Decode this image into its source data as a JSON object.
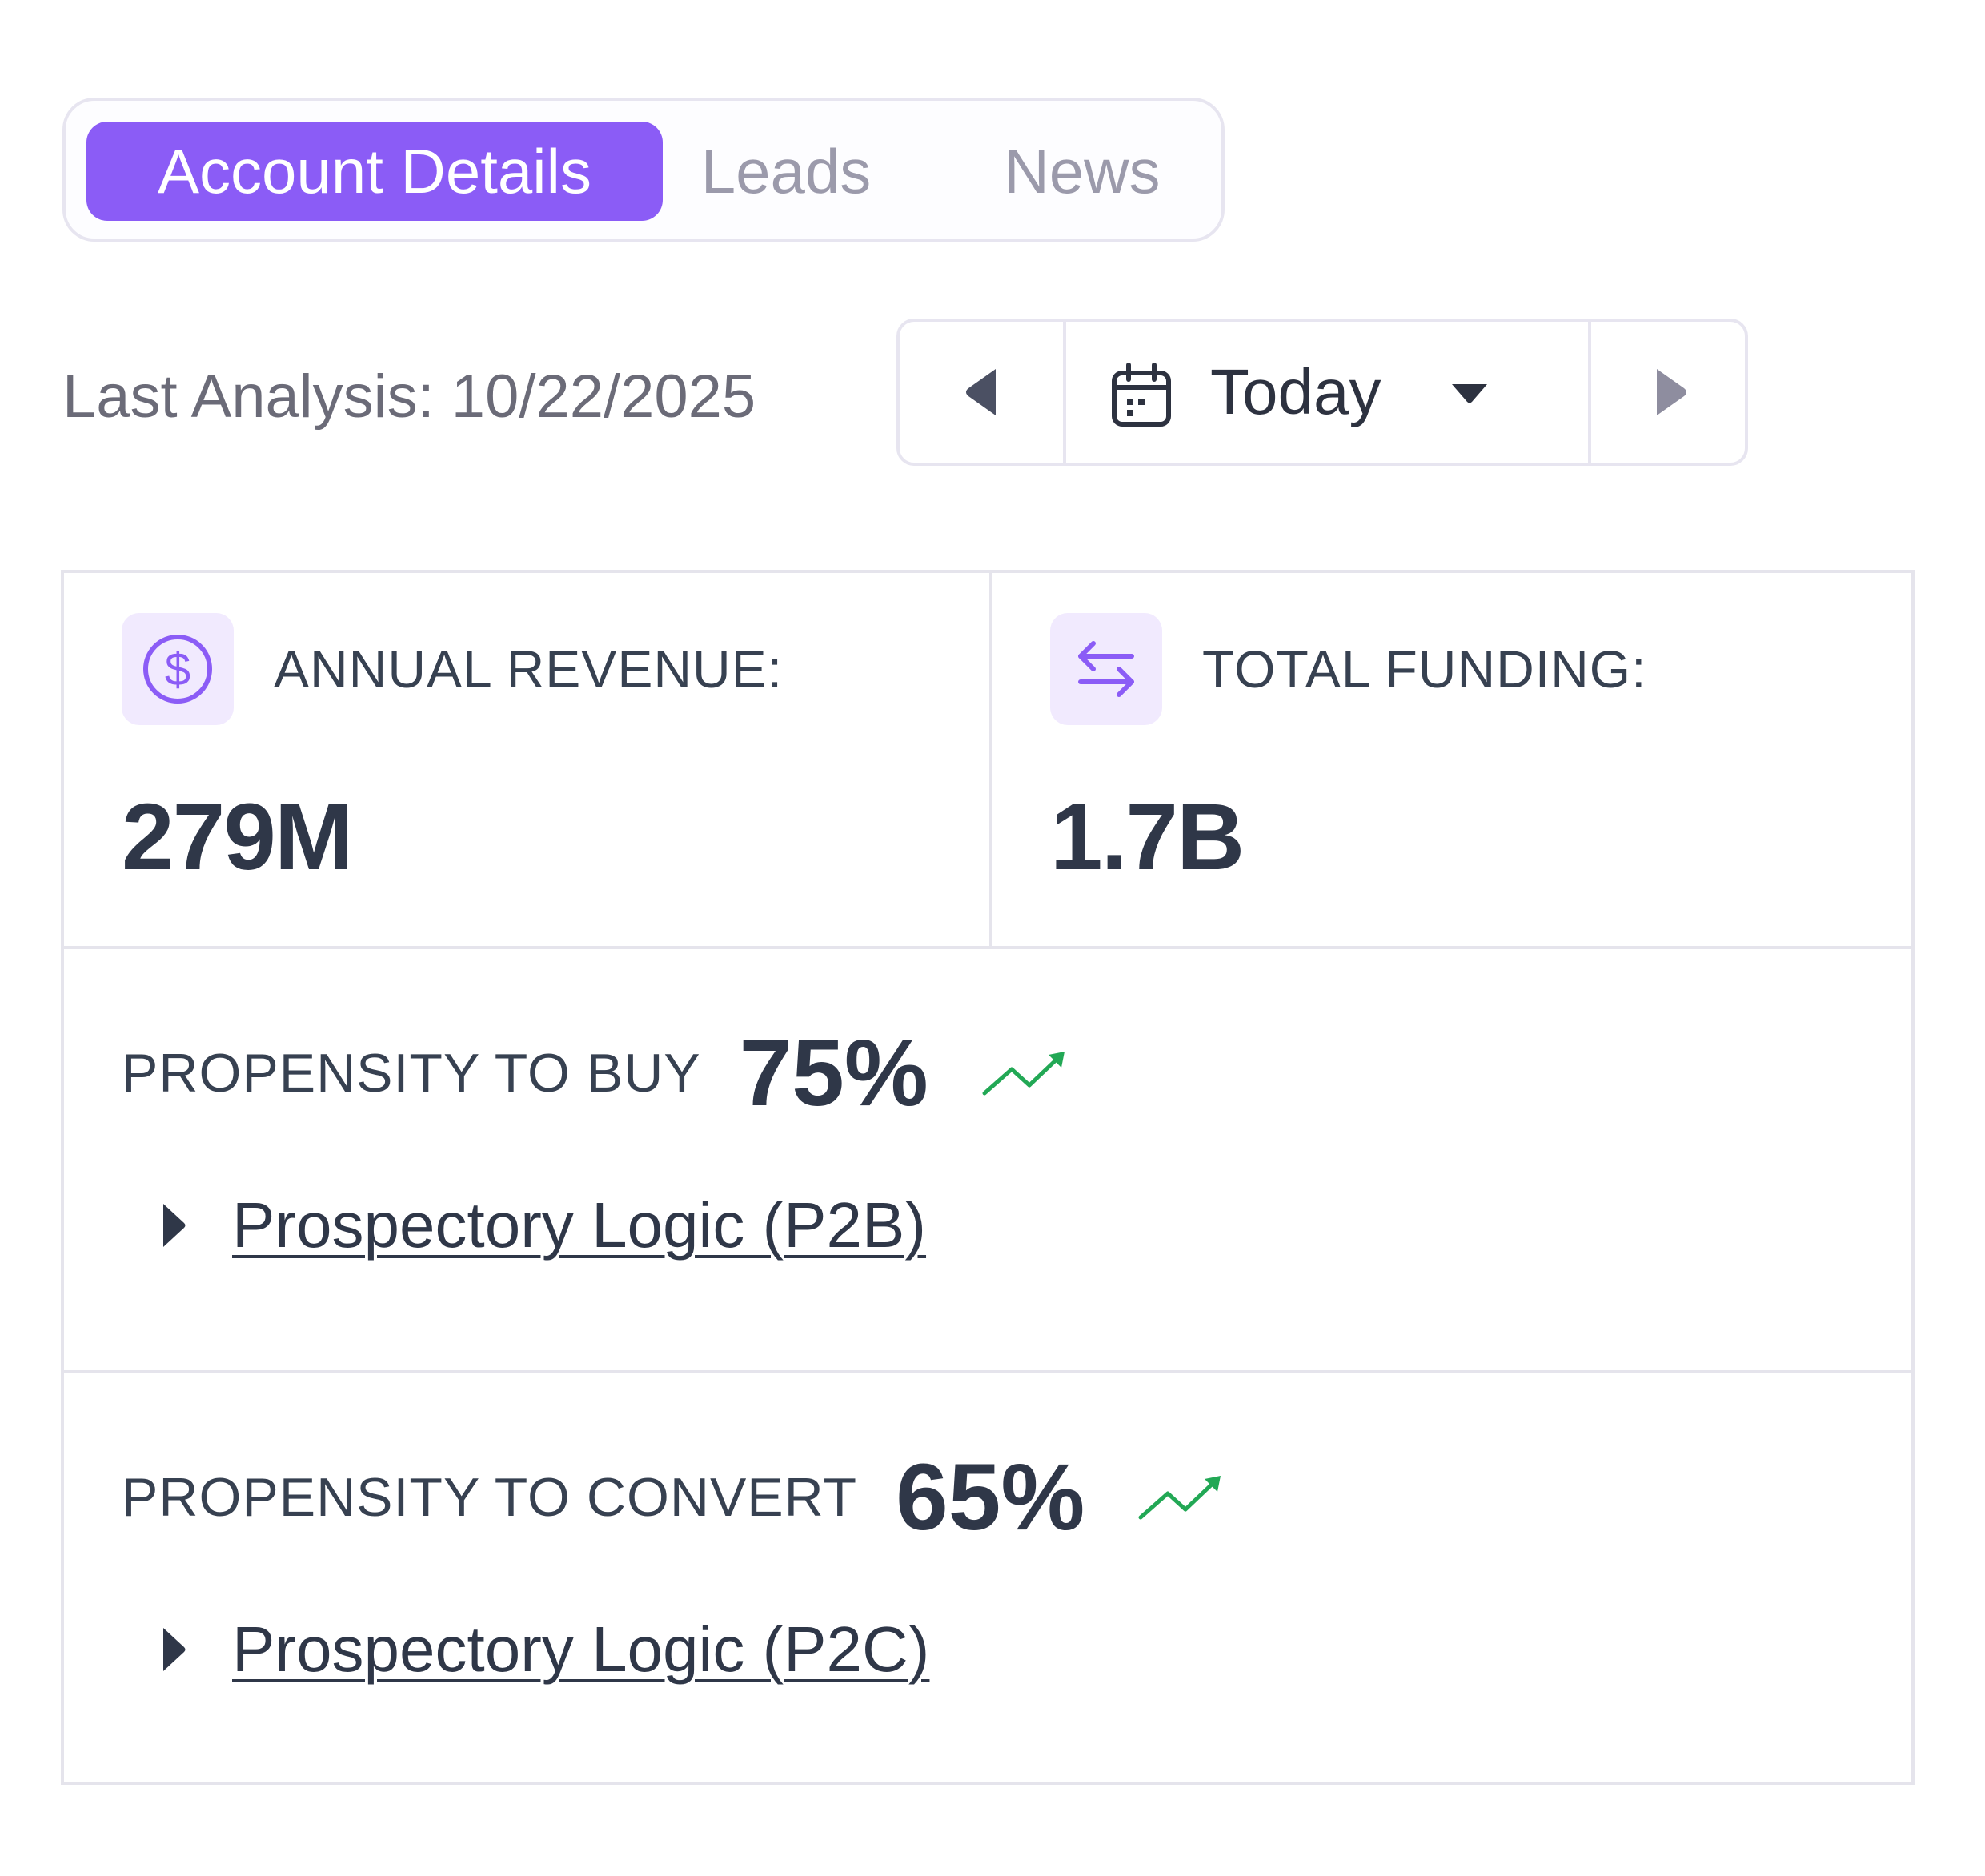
{
  "tabs": [
    {
      "label": "Account Details",
      "active": true
    },
    {
      "label": "Leads",
      "active": false
    },
    {
      "label": "News",
      "active": false
    }
  ],
  "analysis": {
    "last_analysis_text": "Last Analysis: 10/22/2025",
    "date_selector_label": "Today"
  },
  "icons": {
    "prev": "triangle-left-icon",
    "next": "triangle-right-icon",
    "calendar": "calendar-icon",
    "dropdown": "caret-down-icon",
    "revenue": "dollar-circle-icon",
    "funding": "swap-arrows-icon",
    "trend": "trending-up-icon",
    "expand": "triangle-right-icon"
  },
  "stats": {
    "annual_revenue": {
      "label": "ANNUAL REVENUE:",
      "value": "279M"
    },
    "total_funding": {
      "label": "TOTAL FUNDING:",
      "value": "1.7B"
    }
  },
  "propensity": {
    "buy": {
      "label": "PROPENSITY TO BUY",
      "value": "75%",
      "logic_link": "Prospectory Logic (P2B)"
    },
    "convert": {
      "label": "PROPENSITY TO CONVERT",
      "value": "65%",
      "logic_link": "Prospectory Logic (P2C)"
    }
  },
  "colors": {
    "accent": "#8b5cf6",
    "accent_soft": "#f1eafe",
    "trend_up": "#22a855",
    "text_dark": "#2f3748",
    "border": "#e5e4ec"
  }
}
